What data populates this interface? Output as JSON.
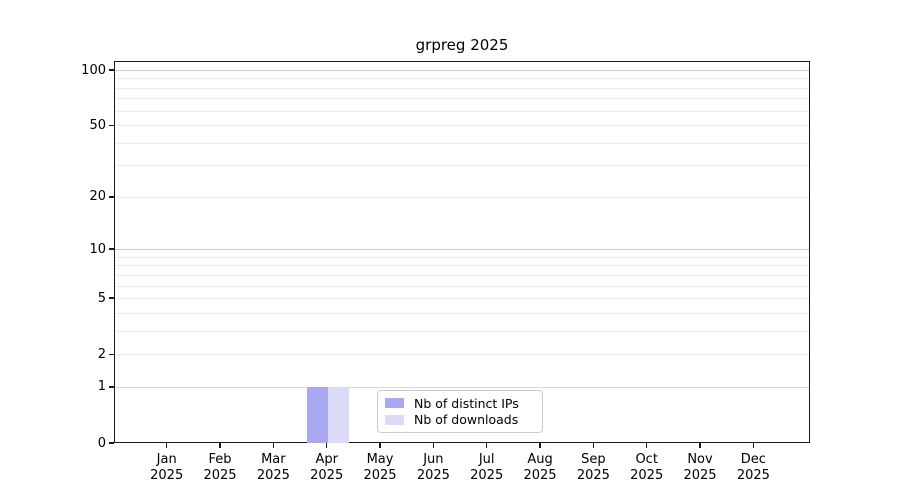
{
  "figure": {
    "title": "grpreg 2025"
  },
  "chart_data": {
    "type": "bar",
    "title": "grpreg 2025",
    "xlabel": "",
    "ylabel": "",
    "y_scale": "log1p",
    "y_range": [
      0,
      110
    ],
    "y_ticks": [
      0,
      1,
      2,
      5,
      10,
      20,
      50,
      100
    ],
    "grid": "horizontal, log minor gridlines, light gray",
    "legend_position": "lower center (inside axes)",
    "x_categories": [
      {
        "month": "Jan",
        "year": "2025"
      },
      {
        "month": "Feb",
        "year": "2025"
      },
      {
        "month": "Mar",
        "year": "2025"
      },
      {
        "month": "Apr",
        "year": "2025"
      },
      {
        "month": "May",
        "year": "2025"
      },
      {
        "month": "Jun",
        "year": "2025"
      },
      {
        "month": "Jul",
        "year": "2025"
      },
      {
        "month": "Aug",
        "year": "2025"
      },
      {
        "month": "Sep",
        "year": "2025"
      },
      {
        "month": "Oct",
        "year": "2025"
      },
      {
        "month": "Nov",
        "year": "2025"
      },
      {
        "month": "Dec",
        "year": "2025"
      }
    ],
    "series": [
      {
        "name": "Nb of distinct IPs",
        "color": "#a9a9f1",
        "values": [
          0,
          0,
          0,
          1,
          0,
          0,
          0,
          0,
          0,
          0,
          0,
          0
        ]
      },
      {
        "name": "Nb of downloads",
        "color": "#dbdbf7",
        "values": [
          0,
          0,
          0,
          1,
          0,
          0,
          0,
          0,
          0,
          0,
          0,
          0
        ]
      }
    ],
    "colors": {
      "axis": "#1a1a1a",
      "gridline_major": "#cccccc",
      "gridline_unit": "#d8d8d8",
      "gridline_minor": "#ececec",
      "background": "#ffffff"
    }
  }
}
